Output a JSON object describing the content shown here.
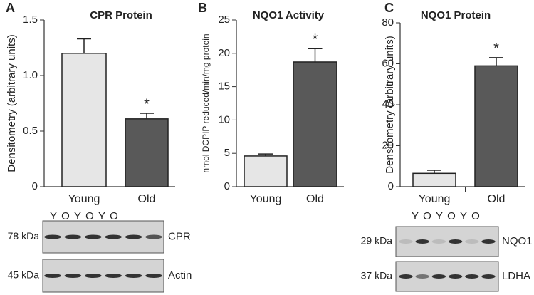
{
  "chart_data": [
    {
      "type": "bar",
      "panel": "A",
      "title": "CPR Protein",
      "y_label": "Densitometry (arbitrary units)",
      "categories": [
        "Young",
        "Old"
      ],
      "values": [
        1.2,
        0.61
      ],
      "errors": [
        0.13,
        0.05
      ],
      "colors": [
        "#e6e6e6",
        "#595959"
      ],
      "annotation": "*",
      "ylim": [
        0,
        1.5
      ],
      "yticks": [
        0,
        0.5,
        {
          "value": 1,
          "label": "1.0"
        },
        1.5
      ]
    },
    {
      "type": "bar",
      "panel": "B",
      "title": "NQO1 Activity",
      "y_label": "nmol DCPIP reduced/min/mg protein",
      "categories": [
        "Young",
        "Old"
      ],
      "values": [
        4.6,
        18.7
      ],
      "errors": [
        0.3,
        2.0
      ],
      "colors": [
        "#e6e6e6",
        "#595959"
      ],
      "annotation": "*",
      "ylim": [
        0,
        25
      ],
      "yticks": [
        0,
        5,
        10,
        15,
        20,
        25
      ]
    },
    {
      "type": "bar",
      "panel": "C",
      "title": "NQO1 Protein",
      "y_label": "Densitometry (arbitrary units)",
      "categories": [
        "Young",
        "Old"
      ],
      "values": [
        6.5,
        59
      ],
      "errors": [
        1.5,
        4
      ],
      "colors": [
        "#e6e6e6",
        "#595959"
      ],
      "annotation": "*",
      "ylim": [
        0,
        80
      ],
      "yticks": [
        0,
        20,
        40,
        60,
        80
      ]
    }
  ],
  "blots": [
    {
      "lanes": [
        "Y",
        "O",
        "Y",
        "O",
        "Y",
        "O"
      ],
      "rows": [
        {
          "size": "78 kDa",
          "name": "CPR"
        },
        {
          "size": "45 kDa",
          "name": "Actin"
        }
      ]
    },
    {
      "lanes": [
        "Y",
        "O",
        "Y",
        "O",
        "Y",
        "O"
      ],
      "rows": [
        {
          "size": "29 kDa",
          "name": "NQO1"
        },
        {
          "size": "37 kDa",
          "name": "LDHA"
        }
      ]
    }
  ]
}
